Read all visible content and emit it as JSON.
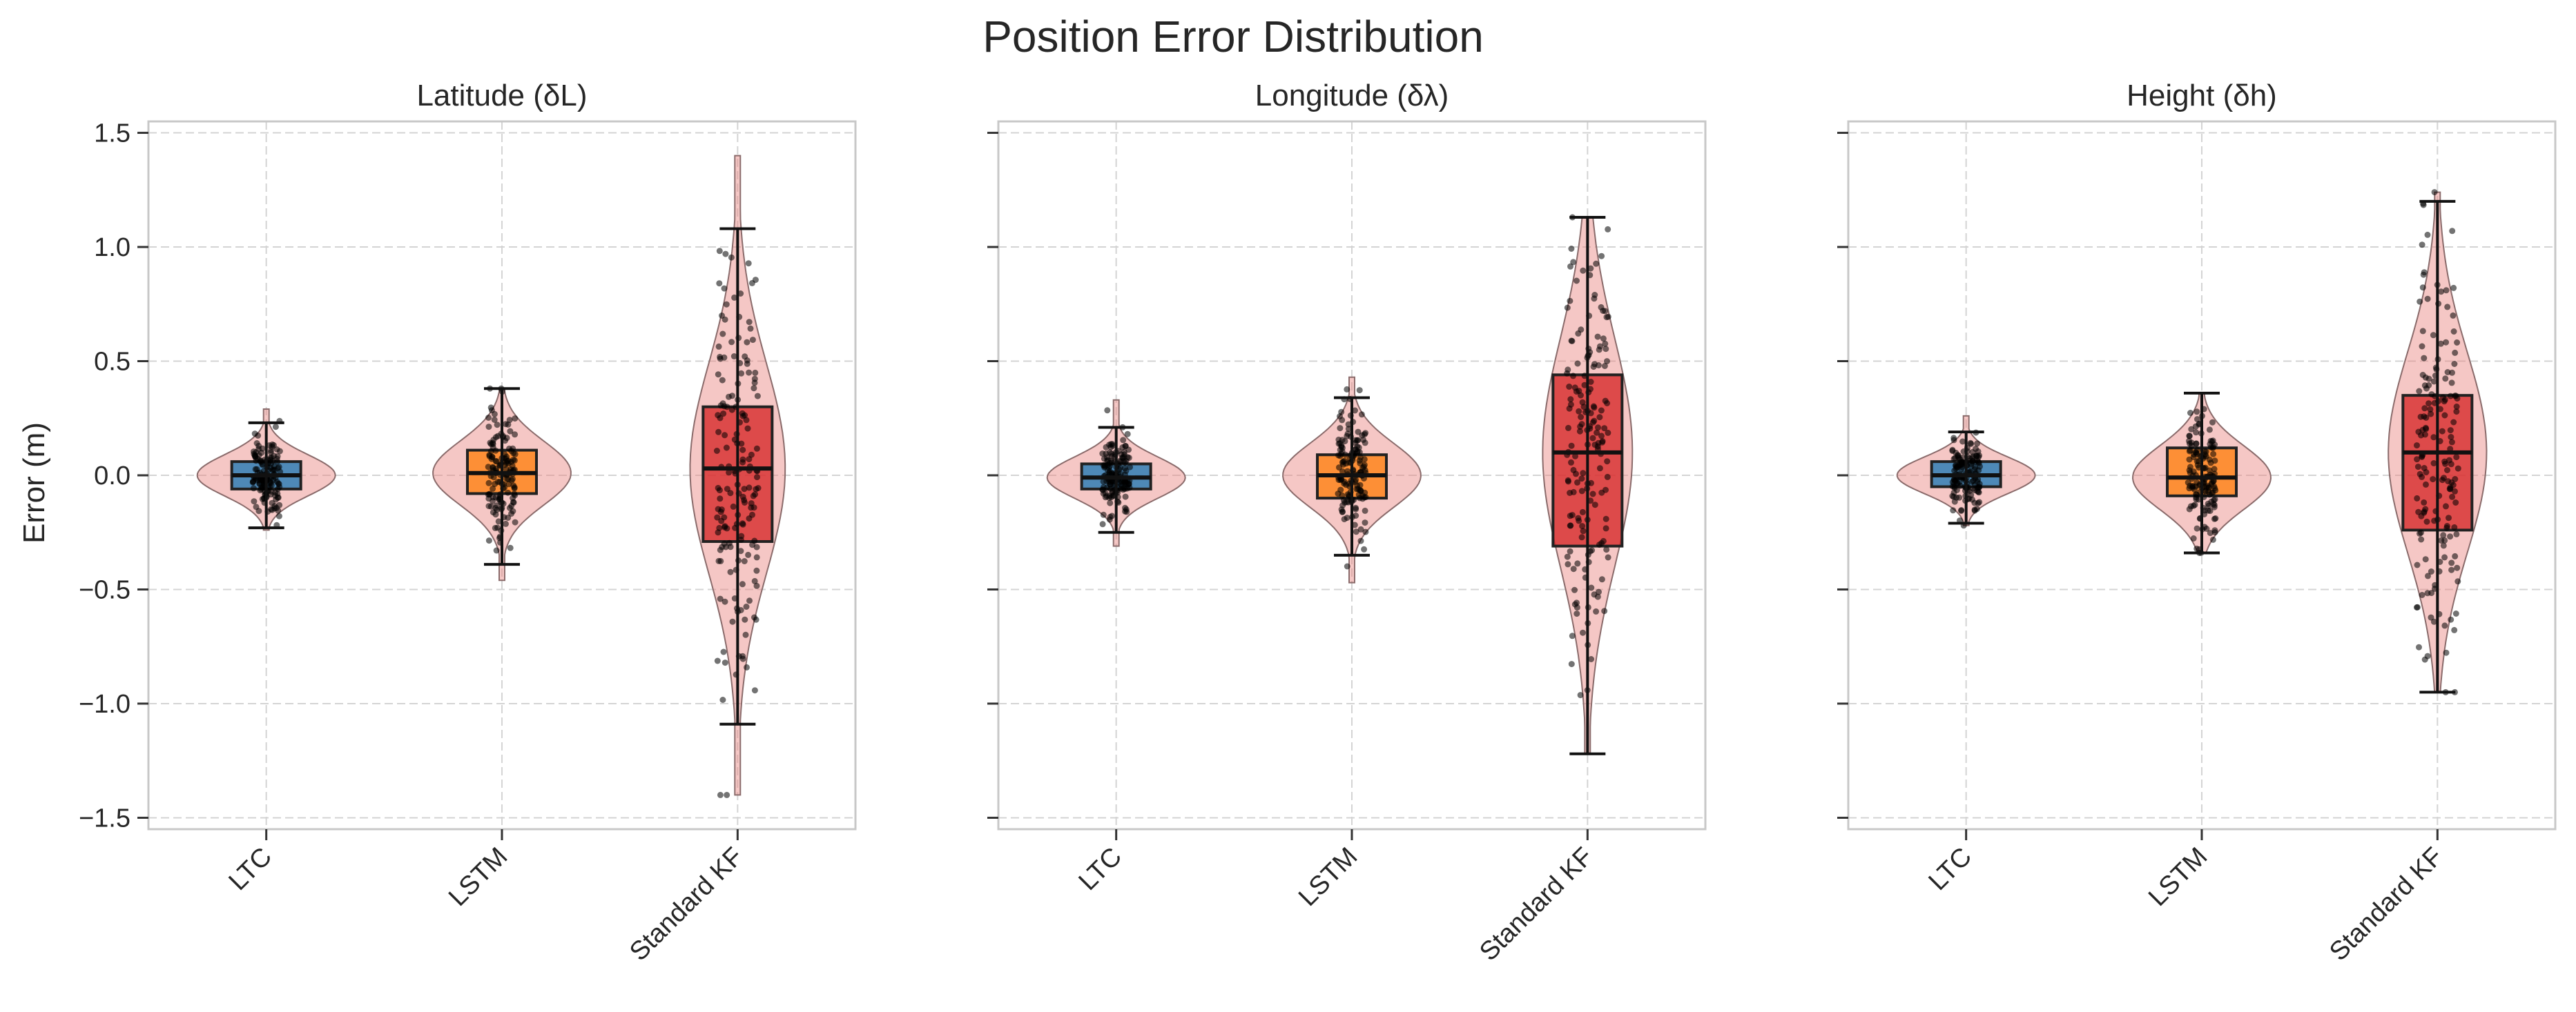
{
  "chart_data": {
    "suptitle": "Position Error Distribution",
    "type": "violin",
    "ylabel": "Error (m)",
    "ylim": [
      -1.55,
      1.55
    ],
    "yticks": [
      -1.5,
      -1.0,
      -0.5,
      0.0,
      0.5,
      1.0,
      1.5
    ],
    "ytick_labels": [
      "−1.5",
      "−1.0",
      "−0.5",
      "0.0",
      "0.5",
      "1.0",
      "1.5"
    ],
    "sharey": true,
    "grid": true,
    "categories": [
      "LTC",
      "LSTM",
      "Standard KF"
    ],
    "colors": {
      "LTC": "#1f77b4",
      "LSTM": "#ff7f0e",
      "Standard KF": "#d62728"
    },
    "violin_color": "#e8827f",
    "point_color": "#000000",
    "panels": [
      {
        "title": "Latitude (δL)",
        "series": [
          {
            "name": "LTC",
            "q1": -0.06,
            "median": 0.0,
            "q3": 0.06,
            "whisker_low": -0.23,
            "whisker_high": 0.23,
            "min": -0.24,
            "max": 0.29,
            "std": 0.09
          },
          {
            "name": "LSTM",
            "q1": -0.08,
            "median": 0.01,
            "q3": 0.11,
            "whisker_low": -0.39,
            "whisker_high": 0.38,
            "min": -0.46,
            "max": 0.38,
            "std": 0.14
          },
          {
            "name": "Standard KF",
            "q1": -0.29,
            "median": 0.03,
            "q3": 0.3,
            "whisker_low": -1.09,
            "whisker_high": 1.08,
            "min": -1.4,
            "max": 1.4,
            "std": 0.46
          }
        ]
      },
      {
        "title": "Longitude (δλ)",
        "series": [
          {
            "name": "LTC",
            "q1": -0.06,
            "median": -0.01,
            "q3": 0.05,
            "whisker_low": -0.25,
            "whisker_high": 0.21,
            "min": -0.31,
            "max": 0.33,
            "std": 0.09
          },
          {
            "name": "LSTM",
            "q1": -0.1,
            "median": 0.0,
            "q3": 0.09,
            "whisker_low": -0.35,
            "whisker_high": 0.34,
            "min": -0.47,
            "max": 0.43,
            "std": 0.14
          },
          {
            "name": "Standard KF",
            "q1": -0.31,
            "median": 0.1,
            "q3": 0.44,
            "whisker_low": -1.22,
            "whisker_high": 1.13,
            "min": -1.22,
            "max": 1.13,
            "std": 0.5
          }
        ]
      },
      {
        "title": "Height (δh)",
        "series": [
          {
            "name": "LTC",
            "q1": -0.05,
            "median": 0.0,
            "q3": 0.06,
            "whisker_low": -0.21,
            "whisker_high": 0.19,
            "min": -0.22,
            "max": 0.26,
            "std": 0.08
          },
          {
            "name": "LSTM",
            "q1": -0.09,
            "median": -0.01,
            "q3": 0.12,
            "whisker_low": -0.34,
            "whisker_high": 0.36,
            "min": -0.34,
            "max": 0.36,
            "std": 0.14
          },
          {
            "name": "Standard KF",
            "q1": -0.24,
            "median": 0.1,
            "q3": 0.35,
            "whisker_low": -0.95,
            "whisker_high": 1.2,
            "min": -0.95,
            "max": 1.24,
            "std": 0.44
          }
        ]
      }
    ]
  }
}
